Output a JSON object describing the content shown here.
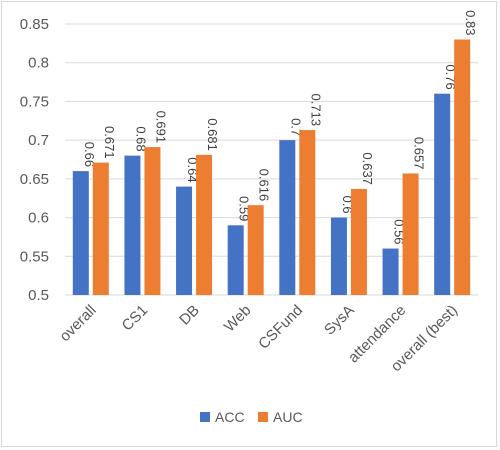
{
  "chart_data": {
    "type": "bar",
    "categories": [
      "overall",
      "CS1",
      "DB",
      "Web",
      "CSFund",
      "SysA",
      "attendance",
      "overall (best)"
    ],
    "series": [
      {
        "name": "ACC",
        "values": [
          0.66,
          0.68,
          0.64,
          0.59,
          0.7,
          0.6,
          0.56,
          0.76
        ],
        "labels": [
          "0.66",
          "0.68",
          "0.64",
          "0.59",
          "0.7",
          "0.6",
          "0.56",
          "0.76"
        ],
        "color": "#4472C4"
      },
      {
        "name": "AUC",
        "values": [
          0.671,
          0.691,
          0.681,
          0.616,
          0.713,
          0.637,
          0.657,
          0.83
        ],
        "labels": [
          "0.671",
          "0.691",
          "0.681",
          "0.616",
          "0.713",
          "0.637",
          "0.657",
          "0.83"
        ],
        "color": "#ED7D31"
      }
    ],
    "yticks": [
      "0.5",
      "0.55",
      "0.6",
      "0.65",
      "0.7",
      "0.75",
      "0.8",
      "0.85"
    ],
    "ylim": [
      0.5,
      0.85
    ],
    "grid": true,
    "legend": "bottom",
    "title": "",
    "xlabel": "",
    "ylabel": ""
  }
}
